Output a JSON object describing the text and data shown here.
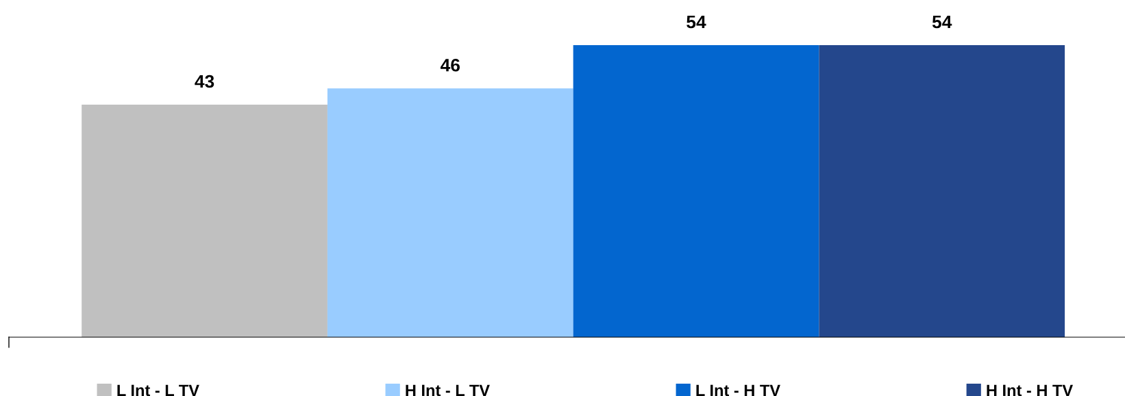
{
  "chart_data": {
    "type": "bar",
    "categories": [
      null
    ],
    "data_labels": true,
    "legend": "bottom",
    "series": [
      {
        "name": "L Int - L TV",
        "color": "#c0c0c0",
        "values": [
          43
        ]
      },
      {
        "name": "H Int - L TV",
        "color": "#99ccff",
        "values": [
          46
        ]
      },
      {
        "name": "L Int - H TV",
        "color": "#0366cf",
        "values": [
          54
        ]
      },
      {
        "name": "H Int - H TV",
        "color": "#24478c",
        "values": [
          54
        ]
      }
    ]
  }
}
